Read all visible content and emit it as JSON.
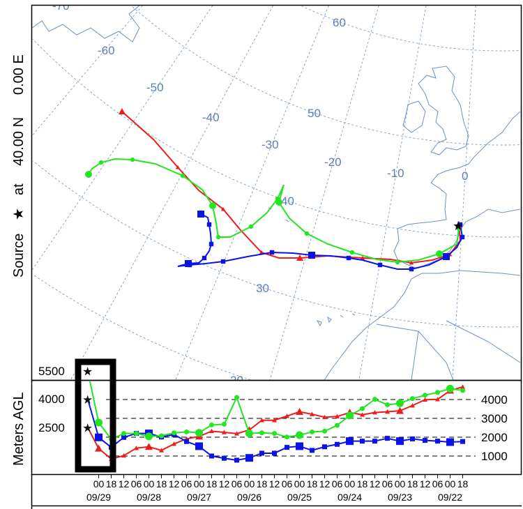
{
  "side_label": {
    "source": "Source",
    "star": "★",
    "at": "at",
    "lat": "40.00 N",
    "lon": "0.00 E"
  },
  "graticule": {
    "longitudes": [
      "-70",
      "-60",
      "-50",
      "-40",
      "-30",
      "-20",
      "-10",
      "0"
    ],
    "latitudes": [
      "60",
      "50",
      "40",
      "30",
      "20"
    ]
  },
  "colors": {
    "red": "#ee1c1c",
    "blue": "#0a14e6",
    "green": "#22e622",
    "graticule": "#7d9cc6",
    "coast": "#6e90c0"
  },
  "height_panel": {
    "ylabel": "Meters AGL",
    "left_ticks": [
      "5500",
      "4000",
      "2500"
    ],
    "right_ticks": [
      "4000",
      "3000",
      "2000",
      "1000"
    ]
  },
  "chart_data": {
    "type": "line",
    "xlabel": "",
    "ylabel": "Meters AGL",
    "x_hour_labels": [
      "00",
      "18",
      "12",
      "06",
      "00",
      "18",
      "12",
      "06",
      "00",
      "18",
      "12",
      "06",
      "00",
      "18",
      "12",
      "06",
      "00",
      "18",
      "12",
      "06",
      "00",
      "18",
      "12",
      "06",
      "00",
      "18",
      "12",
      "06",
      "00",
      "18"
    ],
    "x_date_labels": [
      "09/29",
      "09/28",
      "09/27",
      "09/26",
      "09/25",
      "09/24",
      "09/23",
      "09/22"
    ],
    "source_heights": [
      5500,
      4000,
      2500
    ],
    "series": [
      {
        "color": "red",
        "marker": "triangle",
        "source": 2500,
        "values": [
          1400,
          840,
          1020,
          1420,
          1490,
          1300,
          1640,
          1910,
          2040,
          2320,
          2260,
          2190,
          2380,
          2900,
          2900,
          3120,
          3350,
          3220,
          3060,
          3100,
          3310,
          3190,
          3310,
          3350,
          3400,
          3680,
          3990,
          4010,
          4480,
          4670
        ]
      },
      {
        "color": "blue",
        "marker": "square",
        "source": 4000,
        "values": [
          1990,
          1460,
          1990,
          2200,
          2200,
          2010,
          2140,
          1770,
          1520,
          1000,
          880,
          780,
          900,
          1150,
          1150,
          1460,
          1520,
          1300,
          1490,
          1620,
          1790,
          1790,
          1790,
          1940,
          1790,
          1910,
          1830,
          1790,
          1740,
          1770
        ]
      },
      {
        "color": "green",
        "marker": "circle",
        "source": 5500,
        "values": [
          2780,
          1890,
          2200,
          2200,
          2040,
          2070,
          2230,
          2280,
          2230,
          2650,
          2690,
          4110,
          2200,
          2230,
          2200,
          2010,
          2110,
          2280,
          2320,
          2630,
          3150,
          3520,
          4010,
          3720,
          3800,
          4050,
          4230,
          4380,
          4580,
          4480
        ]
      }
    ]
  }
}
